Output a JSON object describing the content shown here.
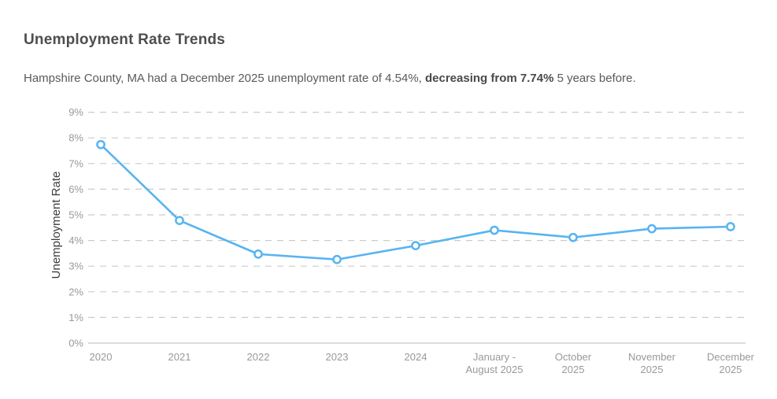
{
  "header": {
    "title": "Unemployment Rate Trends",
    "subtitle_part1": "Hampshire County, MA had a December 2025 unemployment rate of 4.54%, ",
    "subtitle_bold": "decreasing from 7.74%",
    "subtitle_part2": " 5 years before."
  },
  "chart_data": {
    "type": "line",
    "title": "Unemployment Rate Trends",
    "ylabel": "Unemployment Rate",
    "xlabel": "",
    "categories": [
      "2020",
      "2021",
      "2022",
      "2023",
      "2024",
      "January - August 2025",
      "October 2025",
      "November 2025",
      "December 2025"
    ],
    "x_tick_lines": [
      [
        "2020"
      ],
      [
        "2021"
      ],
      [
        "2022"
      ],
      [
        "2023"
      ],
      [
        "2024"
      ],
      [
        "January -",
        "August 2025"
      ],
      [
        "October",
        "2025"
      ],
      [
        "November",
        "2025"
      ],
      [
        "December",
        "2025"
      ]
    ],
    "values": [
      7.74,
      4.78,
      3.47,
      3.26,
      3.8,
      4.4,
      4.12,
      4.46,
      4.54
    ],
    "value_unit": "%",
    "ylim": [
      0,
      9
    ],
    "y_ticks": [
      0,
      1,
      2,
      3,
      4,
      5,
      6,
      7,
      8,
      9
    ],
    "y_tick_suffix": "%",
    "grid": "horizontal-dashed",
    "legend_position": "none",
    "line_color": "#58B4F0",
    "marker_fill": "#FFFFFF",
    "grid_color": "#CBCBCB",
    "axis_line_color": "#C6C6C6",
    "tick_text_color": "#999999"
  }
}
